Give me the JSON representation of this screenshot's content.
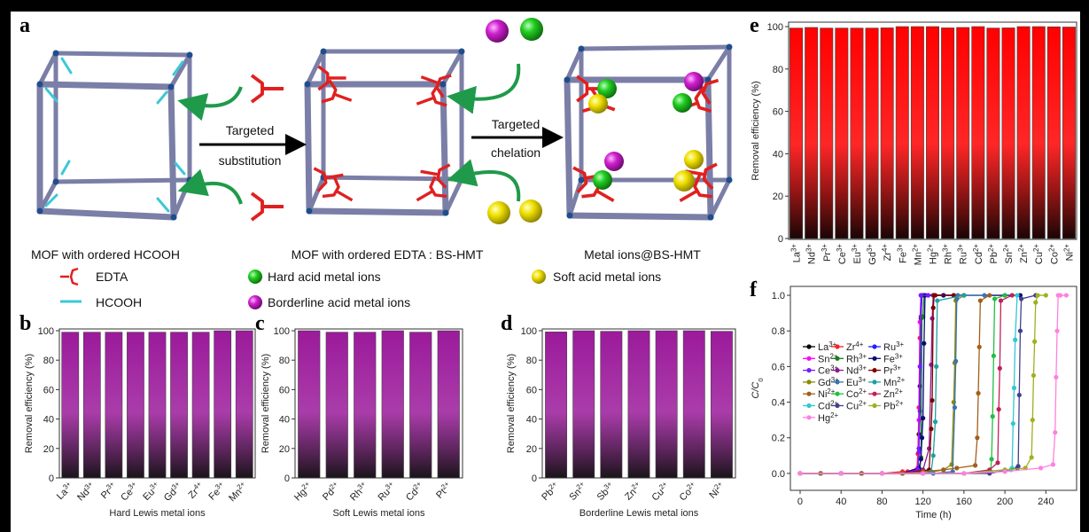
{
  "panel_a": {
    "label": "a",
    "arrow1_top": "Targeted",
    "arrow1_bottom": "substitution",
    "arrow2_top": "Targeted",
    "arrow2_bottom": "chelation",
    "caption_left": "MOF with ordered HCOOH",
    "caption_middle": "MOF with ordered EDTA : BS-HMT",
    "caption_right": "Metal ions@BS-HMT",
    "legend": {
      "edta": "EDTA",
      "hcooh": "HCOOH",
      "hard": "Hard acid metal ions",
      "borderline": "Borderline acid metal ions",
      "soft": "Soft acid metal ions"
    },
    "colors": {
      "frame": "#7b7ea6",
      "node": "#1e4e8c",
      "edta": "#e02020",
      "hcooh": "#3cc8d8",
      "hard": "#22cc22",
      "borderline": "#d020d0",
      "soft": "#f0e000",
      "arrow_curve": "#1f9a4a"
    }
  },
  "chart_data": [
    {
      "panel": "b",
      "type": "bar",
      "categories": [
        {
          "ion": "La",
          "charge": "3+"
        },
        {
          "ion": "Nd",
          "charge": "3+"
        },
        {
          "ion": "Pr",
          "charge": "3+"
        },
        {
          "ion": "Ce",
          "charge": "3+"
        },
        {
          "ion": "Eu",
          "charge": "3+"
        },
        {
          "ion": "Gd",
          "charge": "3+"
        },
        {
          "ion": "Zr",
          "charge": "4+"
        },
        {
          "ion": "Fe",
          "charge": "3+"
        },
        {
          "ion": "Mn",
          "charge": "2+"
        }
      ],
      "values": [
        99,
        99,
        99,
        99,
        99,
        99,
        99,
        100,
        100
      ],
      "xlabel": "Hard Lewis metal ions",
      "ylabel": "Removal efficiency (%)",
      "ylim": [
        0,
        100
      ],
      "yticks": [
        "0",
        "20",
        "40",
        "60",
        "80",
        "100"
      ],
      "bar_color_top": "#9b1a9b",
      "bar_color_bottom": "#1a141a"
    },
    {
      "panel": "c",
      "type": "bar",
      "categories": [
        {
          "ion": "Hg",
          "charge": "2+"
        },
        {
          "ion": "Pd",
          "charge": "2+"
        },
        {
          "ion": "Rh",
          "charge": "3+"
        },
        {
          "ion": "Ru",
          "charge": "3+"
        },
        {
          "ion": "Cd",
          "charge": "2+"
        },
        {
          "ion": "Pt",
          "charge": "2+"
        }
      ],
      "values": [
        100,
        99,
        99,
        100,
        99,
        100
      ],
      "xlabel": "Soft Lewis metal ions",
      "ylabel": "Removal efficiency (%)",
      "ylim": [
        0,
        100
      ],
      "yticks": [
        "0",
        "20",
        "40",
        "60",
        "80",
        "100"
      ],
      "bar_color_top": "#9b1a9b",
      "bar_color_bottom": "#1a141a"
    },
    {
      "panel": "d",
      "type": "bar",
      "categories": [
        {
          "ion": "Pb",
          "charge": "2+"
        },
        {
          "ion": "Sn",
          "charge": "2+"
        },
        {
          "ion": "Sb",
          "charge": "3+"
        },
        {
          "ion": "Zn",
          "charge": "2+"
        },
        {
          "ion": "Cu",
          "charge": "2+"
        },
        {
          "ion": "Co",
          "charge": "2+"
        },
        {
          "ion": "Ni",
          "charge": "2+"
        }
      ],
      "values": [
        99.2,
        100,
        99.6,
        100,
        100,
        100,
        99.6
      ],
      "xlabel": "Borderline Lewis metal ions",
      "ylabel": "Removal efficiency (%)",
      "ylim": [
        0,
        100
      ],
      "yticks": [
        "0",
        "20",
        "40",
        "60",
        "80",
        "100"
      ],
      "bar_color_top": "#9b1a9b",
      "bar_color_bottom": "#1a141a"
    },
    {
      "panel": "e",
      "type": "bar",
      "categories": [
        {
          "ion": "La",
          "charge": "3+"
        },
        {
          "ion": "Nd",
          "charge": "3+"
        },
        {
          "ion": "Pr",
          "charge": "3+"
        },
        {
          "ion": "Ce",
          "charge": "3+"
        },
        {
          "ion": "Eu",
          "charge": "3+"
        },
        {
          "ion": "Gd",
          "charge": "3+"
        },
        {
          "ion": "Zr",
          "charge": "4+"
        },
        {
          "ion": "Fe",
          "charge": "3+"
        },
        {
          "ion": "Mn",
          "charge": "2+"
        },
        {
          "ion": "Hg",
          "charge": "2+"
        },
        {
          "ion": "Rh",
          "charge": "3+"
        },
        {
          "ion": "Ru",
          "charge": "3+"
        },
        {
          "ion": "Cd",
          "charge": "2+"
        },
        {
          "ion": "Pb",
          "charge": "2+"
        },
        {
          "ion": "Sn",
          "charge": "2+"
        },
        {
          "ion": "Zn",
          "charge": "2+"
        },
        {
          "ion": "Cu",
          "charge": "2+"
        },
        {
          "ion": "Co",
          "charge": "2+"
        },
        {
          "ion": "Ni",
          "charge": "2+"
        }
      ],
      "values": [
        99.3,
        99.6,
        99.3,
        99.3,
        99.3,
        99.3,
        99.4,
        100,
        100,
        100,
        99.4,
        99.6,
        100,
        99.3,
        99.4,
        100,
        100,
        99.9,
        99.8
      ],
      "xlabel": "",
      "ylabel": "Removal efficiency (%)",
      "ylim": [
        0,
        100
      ],
      "yticks": [
        "0",
        "20",
        "40",
        "60",
        "80",
        "100"
      ],
      "bar_color_top": "#ff0000",
      "bar_color_bottom": "#1a0505"
    },
    {
      "panel": "f",
      "type": "line",
      "xlabel": "Time (h)",
      "ylabel_main": "C/C",
      "ylabel_sub": "0",
      "xlim": [
        -9.5,
        270
      ],
      "ylim": [
        -0.095,
        1.05
      ],
      "xticks": [
        0,
        40,
        80,
        120,
        160,
        200,
        240
      ],
      "xtick_labels": [
        "0",
        "40",
        "80",
        "120",
        "160",
        "200",
        "240"
      ],
      "yticks": [
        0,
        0.2,
        0.4,
        0.6,
        0.8,
        1.0
      ],
      "ytick_labels": [
        "0.0",
        "0.2",
        "0.4",
        "0.6",
        "0.8",
        "1.0"
      ],
      "legend_position": "center-left",
      "series": [
        {
          "ion": "La",
          "charge": "3+",
          "color": "#000000",
          "x": [
            0,
            20,
            40,
            60,
            80,
            100,
            115,
            116,
            117,
            118,
            119,
            125,
            160
          ],
          "y": [
            0,
            0,
            0,
            0,
            0,
            0,
            0.03,
            0.22,
            0.49,
            0.87,
            1,
            1,
            1
          ]
        },
        {
          "ion": "Zr",
          "charge": "4+",
          "color": "#ff2020",
          "x": [
            0,
            20,
            40,
            60,
            80,
            100,
            105,
            114,
            115,
            116,
            117,
            118,
            130
          ],
          "y": [
            0,
            0,
            0,
            0,
            0,
            0.01,
            0.01,
            0.02,
            0.11,
            0.37,
            0.76,
            1,
            1
          ]
        },
        {
          "ion": "Ru",
          "charge": "3+",
          "color": "#2020ff",
          "x": [
            0,
            20,
            40,
            60,
            80,
            100,
            115,
            116,
            117,
            118,
            119,
            120,
            140
          ],
          "y": [
            0,
            0,
            0,
            0,
            0,
            0,
            0.01,
            0.14,
            0.35,
            0.88,
            1,
            1,
            1
          ]
        },
        {
          "ion": "Sn",
          "charge": "2+",
          "color": "#ff00ff",
          "x": [
            0,
            20,
            40,
            60,
            80,
            100,
            115,
            116,
            117,
            118,
            125
          ],
          "y": [
            0,
            0,
            0,
            0,
            0,
            0,
            0.03,
            0.3,
            0.85,
            1,
            1
          ]
        },
        {
          "ion": "Rh",
          "charge": "3+",
          "color": "#1a7a1a",
          "x": [
            0,
            20,
            40,
            60,
            80,
            100,
            117,
            118,
            119,
            120,
            121,
            130,
            160
          ],
          "y": [
            0,
            0,
            0,
            0,
            0,
            0,
            0.02,
            0.09,
            0.88,
            0.88,
            1,
            1,
            1
          ]
        },
        {
          "ion": "Fe",
          "charge": "3+",
          "color": "#0a0a7a",
          "x": [
            0,
            20,
            40,
            60,
            80,
            100,
            116,
            118,
            119,
            120,
            121,
            122,
            140,
            200,
            215
          ],
          "y": [
            0,
            0,
            0,
            0,
            0,
            0,
            0.03,
            0.08,
            0.2,
            0.31,
            0.73,
            1,
            1,
            1,
            1
          ]
        },
        {
          "ion": "Ce",
          "charge": "3+",
          "color": "#7a1aff",
          "x": [
            0,
            20,
            40,
            60,
            80,
            100,
            115,
            116,
            117,
            118,
            125
          ],
          "y": [
            0,
            0,
            0,
            0,
            0,
            0,
            0.02,
            0.12,
            0.6,
            1,
            1
          ]
        },
        {
          "ion": "Nd",
          "charge": "3+",
          "color": "#8b1a8b",
          "x": [
            0,
            20,
            40,
            60,
            80,
            100,
            120,
            126,
            128,
            129,
            130,
            131,
            150
          ],
          "y": [
            0,
            0,
            0,
            0,
            0,
            0,
            0.02,
            0.14,
            0.61,
            0.87,
            1,
            1,
            1
          ]
        },
        {
          "ion": "Pr",
          "charge": "3+",
          "color": "#800000",
          "x": [
            0,
            20,
            40,
            60,
            80,
            100,
            126,
            128,
            129,
            130,
            131,
            132,
            150
          ],
          "y": [
            0,
            0,
            0,
            0,
            0,
            0,
            0.02,
            0.25,
            0.41,
            0.93,
            1,
            1,
            1
          ]
        },
        {
          "ion": "Gd",
          "charge": "3+",
          "color": "#8a8a00",
          "x": [
            0,
            20,
            40,
            60,
            80,
            100,
            120,
            140,
            148,
            150,
            151,
            152,
            160
          ],
          "y": [
            0,
            0,
            0,
            0,
            0,
            0,
            0,
            0.02,
            0.05,
            0.4,
            0.62,
            0.97,
            1
          ]
        },
        {
          "ion": "Eu",
          "charge": "3+",
          "color": "#3a74b0",
          "x": [
            0,
            20,
            40,
            60,
            80,
            100,
            130,
            149,
            151,
            152,
            153,
            154,
            180
          ],
          "y": [
            0,
            0,
            0,
            0,
            0,
            0,
            0,
            0.01,
            0.37,
            0.63,
            0.98,
            1,
            1
          ]
        },
        {
          "ion": "Mn",
          "charge": "2+",
          "color": "#20a0a0",
          "x": [
            0,
            20,
            40,
            60,
            80,
            100,
            120,
            128,
            130,
            132,
            133,
            134,
            160
          ],
          "y": [
            0,
            0,
            0,
            0,
            0,
            0,
            0,
            0.01,
            0.1,
            0.29,
            0.6,
            0.97,
            1
          ]
        },
        {
          "ion": "Ni",
          "charge": "2+",
          "color": "#a0601a",
          "x": [
            0,
            20,
            40,
            60,
            80,
            100,
            120,
            140,
            153,
            171,
            173,
            174,
            175,
            176,
            185
          ],
          "y": [
            0,
            0,
            0,
            0,
            0,
            0,
            0.01,
            0.02,
            0.03,
            0.045,
            0.2,
            0.45,
            0.71,
            0.97,
            1
          ]
        },
        {
          "ion": "Co",
          "charge": "2+",
          "color": "#20c040",
          "x": [
            0,
            40,
            80,
            120,
            160,
            186,
            187,
            188,
            189,
            190,
            200
          ],
          "y": [
            0,
            0,
            0,
            0,
            0,
            0.01,
            0.08,
            0.32,
            0.66,
            0.98,
            1
          ]
        },
        {
          "ion": "Zn",
          "charge": "2+",
          "color": "#c0205a",
          "x": [
            0,
            40,
            80,
            120,
            160,
            185,
            193,
            194,
            195,
            196,
            207
          ],
          "y": [
            0,
            0,
            0,
            0,
            0,
            0.02,
            0.06,
            0.36,
            0.59,
            0.97,
            1
          ]
        },
        {
          "ion": "Cd",
          "charge": "2+",
          "color": "#30c8d0",
          "x": [
            0,
            40,
            80,
            120,
            160,
            200,
            206,
            207,
            208,
            209,
            210,
            212
          ],
          "y": [
            0,
            0,
            0,
            0,
            0,
            0.02,
            0.02,
            0.03,
            0.28,
            0.48,
            0.75,
            1
          ]
        },
        {
          "ion": "Cu",
          "charge": "2+",
          "color": "#404090",
          "x": [
            0,
            40,
            80,
            120,
            160,
            185,
            212,
            213,
            214,
            215,
            216,
            230
          ],
          "y": [
            0,
            0,
            0,
            0,
            0,
            0,
            0.03,
            0.04,
            0.44,
            0.8,
            0.98,
            1
          ]
        },
        {
          "ion": "Pb",
          "charge": "2+",
          "color": "#a0b020",
          "x": [
            0,
            40,
            80,
            120,
            160,
            200,
            220,
            226,
            227,
            228,
            229,
            230,
            232,
            240
          ],
          "y": [
            0,
            0,
            0,
            0,
            0,
            0.02,
            0.03,
            0.09,
            0.3,
            0.55,
            0.74,
            0.96,
            1,
            1
          ]
        },
        {
          "ion": "Hg",
          "charge": "2+",
          "color": "#ff80e0",
          "x": [
            0,
            40,
            80,
            120,
            160,
            200,
            235,
            247,
            249,
            250,
            251,
            252,
            254,
            260
          ],
          "y": [
            0,
            0,
            0,
            0,
            0,
            0.01,
            0.03,
            0.05,
            0.23,
            0.54,
            0.8,
            1,
            1,
            1
          ]
        }
      ]
    }
  ]
}
